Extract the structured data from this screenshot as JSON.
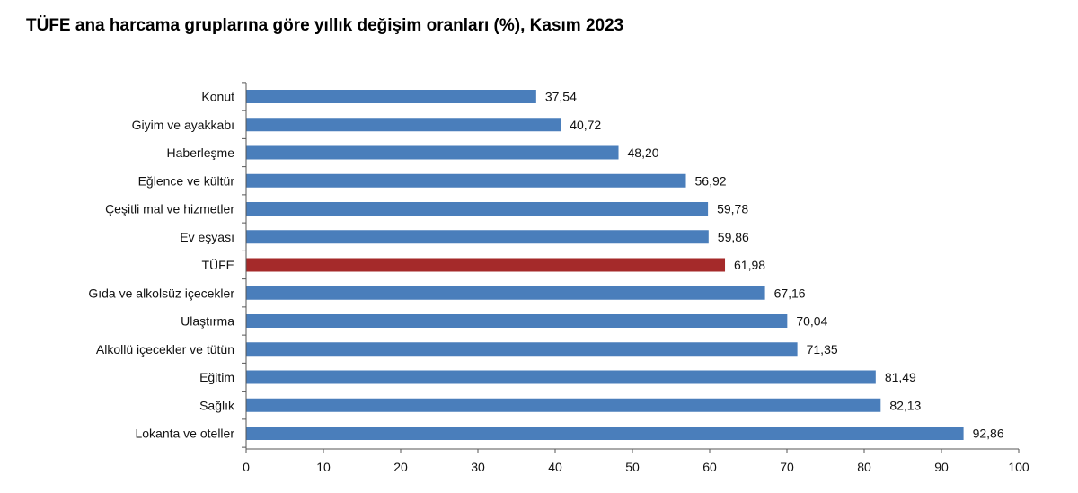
{
  "chart_data": {
    "type": "bar",
    "orientation": "horizontal",
    "title": "TÜFE ana harcama gruplarına göre yıllık değişim oranları (%), Kasım 2023",
    "categories": [
      "Konut",
      "Giyim ve ayakkabı",
      "Haberleşme",
      "Eğlence ve kültür",
      "Çeşitli mal ve hizmetler",
      "Ev eşyası",
      "TÜFE",
      "Gıda ve alkolsüz içecekler",
      "Ulaştırma",
      "Alkollü içecekler ve tütün",
      "Eğitim",
      "Sağlık",
      "Lokanta ve oteller"
    ],
    "values": [
      37.54,
      40.72,
      48.2,
      56.92,
      59.78,
      59.86,
      61.98,
      67.16,
      70.04,
      71.35,
      81.49,
      82.13,
      92.86
    ],
    "value_labels": [
      "37,54",
      "40,72",
      "48,20",
      "56,92",
      "59,78",
      "59,86",
      "61,98",
      "67,16",
      "70,04",
      "71,35",
      "81,49",
      "82,13",
      "92,86"
    ],
    "highlight_category": "TÜFE",
    "xlim": [
      0,
      100
    ],
    "xticks": [
      0,
      10,
      20,
      30,
      40,
      50,
      60,
      70,
      80,
      90,
      100
    ],
    "grid": false,
    "xlabel": "",
    "ylabel": "",
    "colors": {
      "bar": "#4a7ebb",
      "highlight": "#a52a2a",
      "axis": "#555555"
    }
  }
}
